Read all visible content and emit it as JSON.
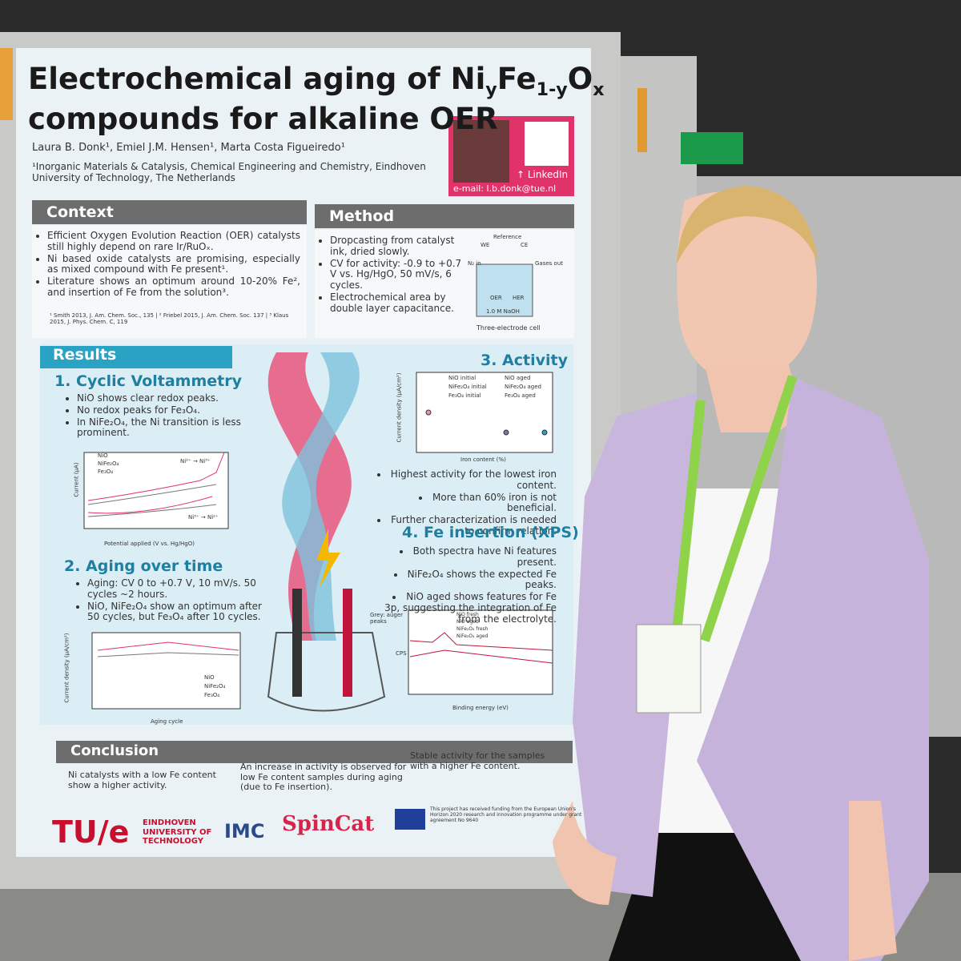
{
  "poster": {
    "title": {
      "line1_parts": [
        "Electrochemical aging of Ni",
        "y",
        "Fe",
        "1-y",
        "O",
        "x"
      ],
      "line2": "compounds for alkaline OER"
    },
    "authors": "Laura B. Donk¹, Emiel J.M. Hensen¹, Marta Costa Figueiredo¹",
    "affiliation": "¹Inorganic Materials & Catalysis, Chemical Engineering and Chemistry, Eindhoven University of Technology, The Netherlands",
    "linkedin": "↑ LinkedIn",
    "email": "e-mail: l.b.donk@tue.nl",
    "context": {
      "heading": "Context",
      "bullets": [
        "Efficient Oxygen Evolution Reaction (OER) catalysts still highly depend on rare Ir/RuOₓ.",
        "Ni based oxide catalysts are promising, especially as mixed compound with Fe present¹.",
        "Literature shows an optimum around 10-20% Fe², and insertion of Fe from the solution³."
      ],
      "refs": "¹ Smith 2013, J. Am. Chem. Soc., 135 | ² Friebel 2015, J. Am. Chem. Soc. 137 | ³ Klaus 2015, J. Phys. Chem. C, 119"
    },
    "method": {
      "heading": "Method",
      "bullets": [
        "Dropcasting from catalyst ink, dried slowly.",
        "CV for activity: -0.9 to +0.7 V vs. Hg/HgO, 50 mV/s, 6 cycles.",
        "Electrochemical area by double layer capacitance."
      ],
      "cell_labels": [
        "Reference",
        "WE",
        "CE",
        "N₂ in",
        "Gases out",
        "OER",
        "HER",
        "1.0 M NaOH"
      ],
      "cell_caption": "Three-electrode cell"
    },
    "results": {
      "heading": "Results",
      "cv": {
        "title": "1. Cyclic Voltammetry",
        "bullets": [
          "NiO shows clear redox peaks.",
          "No redox peaks for Fe₃O₄.",
          "In NiFe₂O₄, the Ni transition is less prominent."
        ],
        "ylabel": "Current (µA)",
        "xlabel": "Potential applied (V vs. Hg/HgO)",
        "legend": [
          "NiO",
          "NiFe₂O₄",
          "Fe₃O₄"
        ],
        "annotations": [
          "Ni²⁺ → Ni³⁺",
          "Ni³⁺ → Ni²⁺"
        ]
      },
      "aging": {
        "title": "2. Aging over time",
        "bullets": [
          "Aging: CV 0 to +0.7 V, 10 mV/s. 50 cycles ~2 hours.",
          "NiO, NiFe₂O₄ show an optimum after 50 cycles, but Fe₃O₄ after 10 cycles."
        ],
        "ylabel": "Current density (µA/cm²)",
        "xlabel": "Aging cycle",
        "legend": [
          "NiO",
          "NiFe₂O₄",
          "Fe₃O₄"
        ]
      },
      "activity": {
        "title": "3. Activity",
        "bullets": [
          "Highest activity for the lowest iron content.",
          "More than 60% iron is not beneficial.",
          "Further characterization is needed to confirm relation."
        ],
        "ylabel": "Current density (µA/cm²)",
        "xlabel": "Iron content (%)",
        "legend": [
          "NiO initial",
          "NiO aged",
          "NiFe₂O₄ initial",
          "NiFe₂O₄ aged",
          "Fe₃O₄ initial",
          "Fe₃O₄ aged"
        ]
      },
      "xps": {
        "title": "4. Fe insertion (XPS)",
        "bullets": [
          "Both spectra have Ni features present.",
          "NiFe₂O₄ shows the expected Fe peaks.",
          "NiO aged shows features for Fe 3p, suggesting the integration of Fe from the electrolyte."
        ],
        "ylabel": "CPS",
        "xlabel": "Binding energy (eV)",
        "note": "Grey: auger peaks",
        "legend": [
          "NiO fresh",
          "NiO aged",
          "NiFe₂O₄ fresh",
          "NiFe₂O₄ aged"
        ]
      }
    },
    "conclusion": {
      "heading": "Conclusion",
      "items": [
        "Ni catalysts with a low Fe content show a higher activity.",
        "An increase in activity is observed for low Fe content samples during aging (due to Fe insertion).",
        "Stable activity for the samples with a higher Fe content."
      ]
    },
    "logos": {
      "tue": "TU/e",
      "tue_name": "EINDHOVEN UNIVERSITY OF TECHNOLOGY",
      "imc": "IMC",
      "spincat": "SpinCat",
      "funding": "This project has received funding from the European Union's Horizon 2020 research and innovation programme under grant agreement No 9640"
    }
  }
}
